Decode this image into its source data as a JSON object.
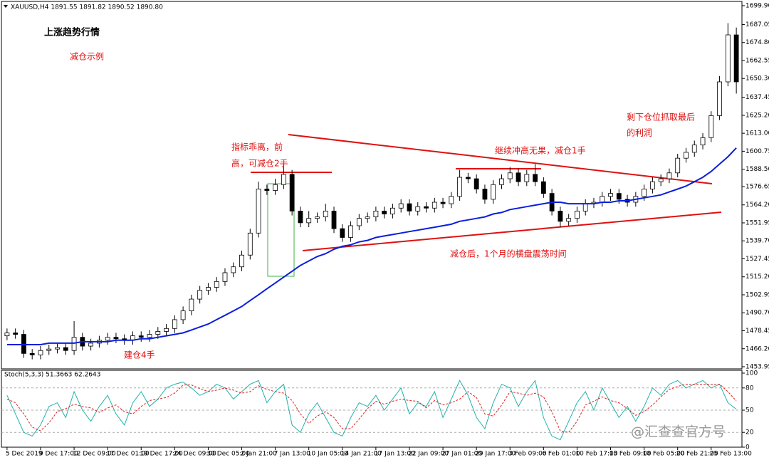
{
  "chart_data": [
    {
      "type": "candlestick",
      "title": "XAUUSD,H4  1891.55 1891.82 1890.52 1890.80",
      "annotations": [
        "上涨趋势行情",
        "减仓示例",
        "指标乖离，前",
        "高，可减仓2手",
        "继续冲高无果，减仓1手",
        "剩下仓位抓取最后",
        "的利润",
        "减仓后，1个月的横盘震荡时间",
        "建仓4手",
        "@汇查查官方号"
      ],
      "categories": [
        "5 Dec 2019",
        null,
        null,
        null,
        "9 Dec 17:00",
        null,
        null,
        null,
        "12 Dec 09:00",
        null,
        null,
        null,
        "17 Dec 01:00",
        null,
        null,
        null,
        "19 Dec 17:00",
        null,
        null,
        null,
        "24 Dec 09:00",
        null,
        null,
        null,
        "30 Dec 05:00",
        null,
        null,
        null,
        "2 Jan 21:00",
        null,
        null,
        null,
        "7 Jan 13:00",
        null,
        null,
        null,
        "10 Jan 05:00",
        null,
        null,
        null,
        "14 Jan 21:00",
        null,
        null,
        null,
        "17 Jan 13:00",
        null,
        null,
        null,
        "22 Jan 09:00",
        null,
        null,
        null,
        "27 Jan 01:00",
        null,
        null,
        null,
        "29 Jan 17:00",
        null,
        null,
        null,
        "3 Feb 09:00",
        null,
        null,
        null,
        "6 Feb 01:00",
        null,
        null,
        null,
        "10 Feb 17:00",
        null,
        null,
        null,
        "13 Feb 09:00",
        null,
        null,
        null,
        "18 Feb 05:00",
        null,
        null,
        null,
        "20 Feb 21:00",
        null,
        null,
        null,
        "25 Feb 13:00",
        null,
        null,
        null
      ],
      "open": [
        1475,
        1477,
        1476,
        1463,
        1462,
        1465,
        1466,
        1467,
        1465,
        1474,
        1468,
        1470,
        1472,
        1474,
        1473,
        1472,
        1475,
        1474,
        1476,
        1478,
        1480,
        1486,
        1492,
        1500,
        1506,
        1508,
        1512,
        1518,
        1522,
        1530,
        1545,
        1575,
        1574,
        1578,
        1585,
        1560,
        1552,
        1555,
        1556,
        1560,
        1548,
        1542,
        1550,
        1555,
        1556,
        1560,
        1558,
        1562,
        1565,
        1560,
        1563,
        1562,
        1566,
        1565,
        1570,
        1583,
        1582,
        1575,
        1568,
        1578,
        1582,
        1586,
        1580,
        1585,
        1580,
        1572,
        1560,
        1553,
        1555,
        1560,
        1565,
        1566,
        1570,
        1572,
        1568,
        1566,
        1570,
        1575,
        1580,
        1582,
        1586,
        1596,
        1600,
        1605,
        1610,
        1625,
        1648,
        1680
      ],
      "high": [
        1480,
        1480,
        1479,
        1466,
        1468,
        1469,
        1470,
        1470,
        1485,
        1477,
        1473,
        1475,
        1477,
        1477,
        1476,
        1478,
        1478,
        1479,
        1481,
        1483,
        1489,
        1495,
        1503,
        1509,
        1511,
        1515,
        1521,
        1525,
        1533,
        1548,
        1580,
        1578,
        1582,
        1592,
        1588,
        1563,
        1560,
        1559,
        1565,
        1563,
        1551,
        1553,
        1558,
        1559,
        1563,
        1563,
        1565,
        1568,
        1568,
        1566,
        1566,
        1569,
        1569,
        1573,
        1588,
        1586,
        1585,
        1578,
        1581,
        1585,
        1590,
        1589,
        1588,
        1592,
        1583,
        1575,
        1563,
        1558,
        1563,
        1568,
        1569,
        1573,
        1575,
        1575,
        1571,
        1573,
        1578,
        1583,
        1585,
        1589,
        1599,
        1603,
        1608,
        1613,
        1628,
        1652,
        1688,
        1685
      ],
      "low": [
        1472,
        1473,
        1460,
        1459,
        1459,
        1462,
        1463,
        1462,
        1462,
        1465,
        1465,
        1467,
        1469,
        1470,
        1469,
        1469,
        1471,
        1471,
        1473,
        1475,
        1477,
        1483,
        1489,
        1497,
        1503,
        1505,
        1509,
        1515,
        1519,
        1527,
        1542,
        1571,
        1571,
        1575,
        1557,
        1549,
        1549,
        1552,
        1553,
        1545,
        1539,
        1539,
        1547,
        1552,
        1553,
        1555,
        1555,
        1559,
        1557,
        1557,
        1559,
        1559,
        1562,
        1562,
        1567,
        1579,
        1572,
        1565,
        1565,
        1575,
        1579,
        1577,
        1577,
        1577,
        1569,
        1557,
        1549,
        1550,
        1552,
        1557,
        1562,
        1563,
        1567,
        1565,
        1563,
        1563,
        1567,
        1572,
        1577,
        1579,
        1583,
        1593,
        1597,
        1602,
        1607,
        1622,
        1645,
        1640
      ],
      "close": [
        1477,
        1476,
        1463,
        1462,
        1465,
        1466,
        1467,
        1465,
        1474,
        1468,
        1470,
        1472,
        1474,
        1473,
        1472,
        1475,
        1474,
        1476,
        1478,
        1480,
        1486,
        1492,
        1500,
        1506,
        1508,
        1512,
        1518,
        1522,
        1530,
        1545,
        1575,
        1574,
        1578,
        1585,
        1560,
        1552,
        1555,
        1556,
        1560,
        1548,
        1542,
        1550,
        1555,
        1556,
        1560,
        1558,
        1562,
        1565,
        1560,
        1563,
        1562,
        1566,
        1565,
        1570,
        1583,
        1582,
        1575,
        1568,
        1578,
        1582,
        1586,
        1580,
        1585,
        1580,
        1572,
        1560,
        1553,
        1555,
        1560,
        1565,
        1566,
        1570,
        1572,
        1568,
        1566,
        1570,
        1575,
        1580,
        1582,
        1586,
        1596,
        1600,
        1605,
        1610,
        1625,
        1648,
        1680,
        1648
      ],
      "series": [
        {
          "color": "#0a1edc",
          "values": [
            1469,
            1469,
            1469,
            1469,
            1469,
            1470,
            1470,
            1470,
            1470,
            1471,
            1471,
            1471,
            1471,
            1472,
            1472,
            1472,
            1473,
            1473,
            1474,
            1475,
            1476,
            1477,
            1479,
            1481,
            1483,
            1486,
            1489,
            1492,
            1495,
            1499,
            1503,
            1507,
            1511,
            1515,
            1519,
            1523,
            1526,
            1529,
            1531,
            1534,
            1536,
            1537,
            1539,
            1540,
            1542,
            1543,
            1544,
            1545,
            1546,
            1547,
            1548,
            1549,
            1550,
            1551,
            1553,
            1554,
            1555,
            1556,
            1558,
            1559,
            1561,
            1562,
            1563,
            1564,
            1565,
            1566,
            1566,
            1565,
            1565,
            1565,
            1565,
            1566,
            1566,
            1567,
            1567,
            1568,
            1569,
            1570,
            1571,
            1573,
            1575,
            1577,
            1580,
            1583,
            1587,
            1592,
            1597,
            1603
          ]
        }
      ],
      "ylim": [
        1452.5,
        1702.8
      ],
      "yticks": [
        {
          "value": 1699.9,
          "label": "1699.90"
        },
        1687.05,
        {
          "value": 1674.8,
          "label": "1674.80"
        },
        1662.55,
        {
          "value": 1650.3,
          "label": "1650.30"
        },
        1637.45,
        {
          "value": 1625.2,
          "label": "1625.20"
        },
        {
          "value": 1613,
          "label": "1613.00"
        },
        1600.75,
        {
          "value": 1588.5,
          "label": "1588.50"
        },
        1576.65,
        {
          "value": 1564.2,
          "label": "1564.20"
        },
        1551.95,
        {
          "value": 1539.7,
          "label": "1539.70"
        },
        1527.45,
        {
          "value": 1515.2,
          "label": "1515.20"
        },
        1502.95,
        {
          "value": 1490.7,
          "label": "1490.70"
        },
        1478.45,
        {
          "value": 1466.2,
          "label": "1466.20"
        },
        1453.95
      ]
    },
    {
      "type": "line",
      "title": "Stoch(5,3,3) 51.3663 62.2643",
      "series": [
        {
          "color": "#20b2aa",
          "dashed": false,
          "values": [
            70,
            45,
            20,
            15,
            30,
            55,
            60,
            40,
            75,
            50,
            35,
            55,
            70,
            45,
            30,
            60,
            75,
            55,
            65,
            80,
            85,
            88,
            80,
            70,
            75,
            85,
            80,
            65,
            75,
            85,
            90,
            60,
            75,
            85,
            30,
            20,
            45,
            60,
            40,
            20,
            15,
            40,
            60,
            55,
            70,
            50,
            65,
            80,
            45,
            60,
            55,
            75,
            40,
            65,
            90,
            70,
            40,
            25,
            60,
            85,
            80,
            55,
            75,
            90,
            40,
            15,
            10,
            35,
            60,
            75,
            50,
            80,
            60,
            40,
            55,
            35,
            55,
            80,
            70,
            85,
            90,
            80,
            85,
            90,
            80,
            85,
            60,
            51.3663
          ]
        },
        {
          "color": "#e02020",
          "dashed": true,
          "values": [
            65,
            60,
            45,
            27,
            22,
            33,
            48,
            52,
            58,
            55,
            53,
            47,
            53,
            57,
            48,
            45,
            55,
            63,
            65,
            67,
            73,
            84,
            84,
            79,
            75,
            77,
            80,
            77,
            73,
            75,
            83,
            78,
            75,
            73,
            63,
            45,
            32,
            42,
            48,
            40,
            25,
            25,
            38,
            52,
            62,
            58,
            62,
            65,
            63,
            62,
            53,
            63,
            57,
            60,
            65,
            75,
            67,
            45,
            42,
            57,
            75,
            73,
            70,
            73,
            68,
            48,
            22,
            20,
            35,
            57,
            62,
            68,
            63,
            60,
            52,
            43,
            48,
            57,
            68,
            78,
            82,
            85,
            85,
            85,
            85,
            85,
            75,
            62.2643
          ]
        }
      ],
      "ylim": [
        0,
        100
      ],
      "yticks": [
        100,
        80,
        50,
        20,
        0
      ],
      "grid": true
    }
  ]
}
